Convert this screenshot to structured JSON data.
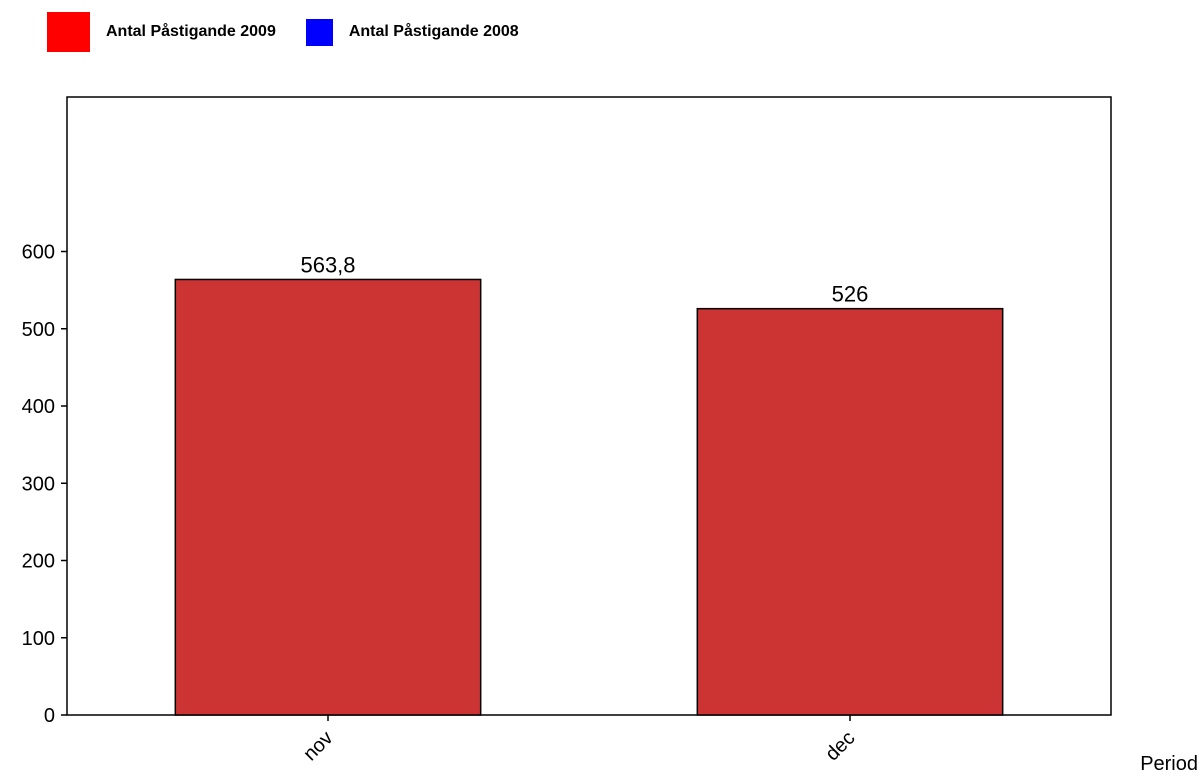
{
  "legend": [
    {
      "label": "Antal Påstigande 2009",
      "color": "#ff0000"
    },
    {
      "label": "Antal Påstigande 2008",
      "color": "#0000ff"
    }
  ],
  "chart_data": {
    "type": "bar",
    "title": "",
    "xlabel": "Period",
    "ylabel": "",
    "categories": [
      "nov",
      "dec"
    ],
    "series": [
      {
        "name": "Antal Påstigande 2009",
        "values": [
          563.8,
          526
        ],
        "color": "#cc3333"
      }
    ],
    "value_labels": [
      "563,8",
      "526"
    ],
    "ylim": [
      0,
      800
    ],
    "yticks": [
      0,
      100,
      200,
      300,
      400,
      500,
      600
    ],
    "grid": false,
    "legend_position": "top-left"
  }
}
